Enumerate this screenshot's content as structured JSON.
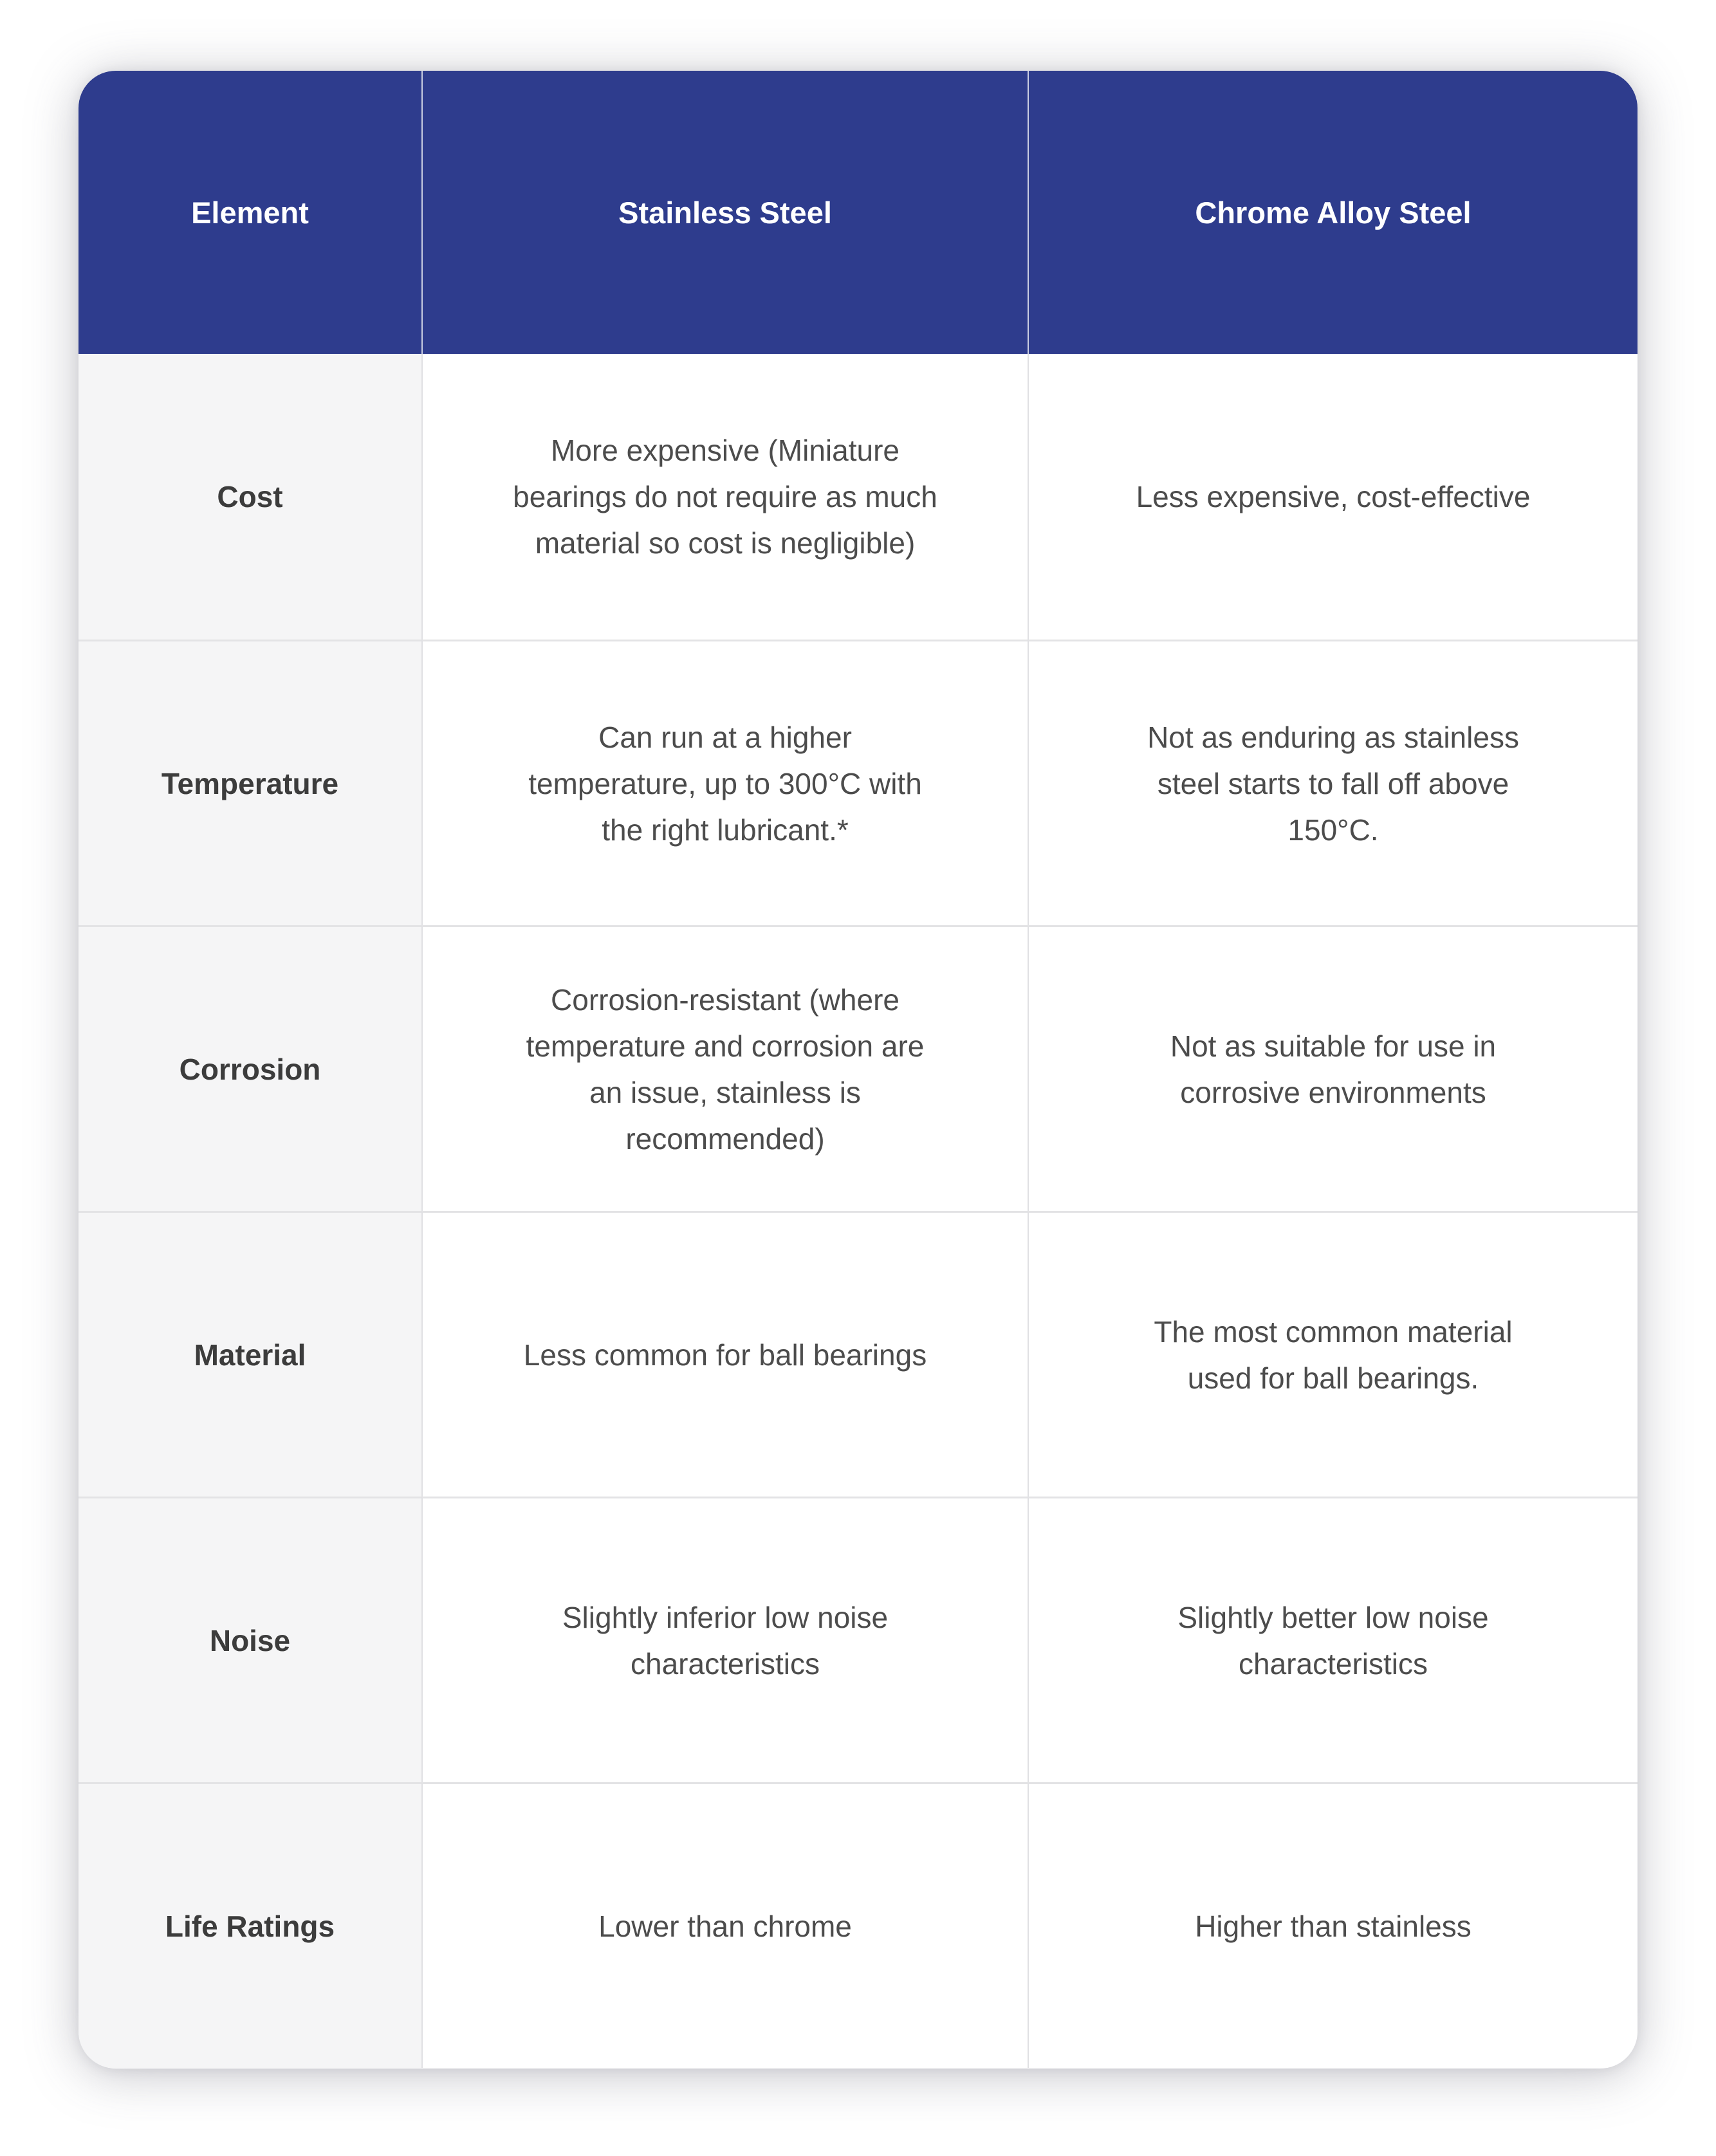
{
  "colors": {
    "header_bg": "#2e3c8d",
    "header_text": "#ffffff",
    "header_divider": "rgba(255,255,255,0.75)",
    "label_col_bg": "#f5f5f6",
    "body_bg": "#ffffff",
    "label_text": "#3c3c3c",
    "body_text": "#4c4c4c",
    "row_line": "#e3e3e5",
    "col_line": "#e0e0e3"
  },
  "table": {
    "columns": [
      "Element",
      "Stainless Steel",
      "Chrome Alloy Steel"
    ],
    "rows": [
      {
        "label": "Cost",
        "stainless": "More expensive (Miniature bearings do not require as much material so cost is negligible)",
        "chrome": "Less expensive, cost-effective"
      },
      {
        "label": "Temperature",
        "stainless": "Can run at a higher temperature, up to 300°C with the right lubricant.*",
        "chrome": "Not as enduring as stainless steel starts to fall off above 150°C."
      },
      {
        "label": "Corrosion",
        "stainless": "Corrosion-resistant (where temperature and corrosion are an issue, stainless is recommended)",
        "chrome": "Not as suitable for use in corrosive environments"
      },
      {
        "label": "Material",
        "stainless": "Less common for ball bearings",
        "chrome": "The most common material used for ball bearings."
      },
      {
        "label": "Noise",
        "stainless": "Slightly inferior low noise characteristics",
        "chrome": "Slightly better low noise characteristics"
      },
      {
        "label": "Life Ratings",
        "stainless": "Lower than chrome",
        "chrome": "Higher than stainless"
      }
    ]
  }
}
